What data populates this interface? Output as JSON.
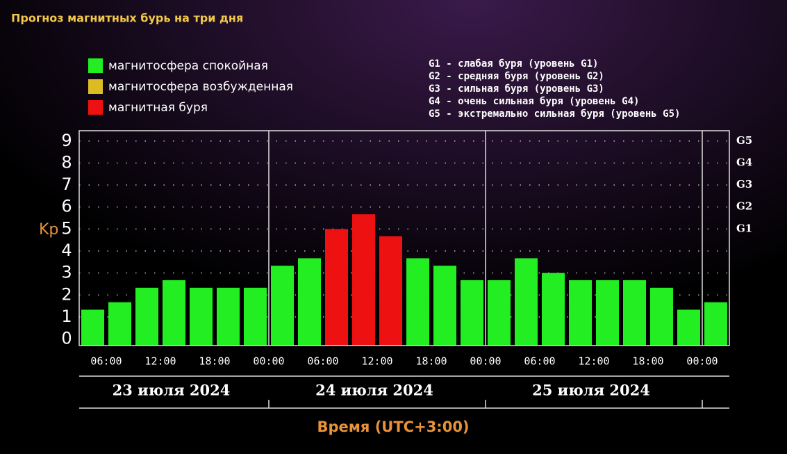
{
  "chart_data": {
    "type": "bar",
    "title": "Прогноз магнитных бурь на три дня",
    "y_label": "Kp",
    "x_label": "Время (UTC+3:00)",
    "legend": [
      {
        "name": "магнитосфера спокойная",
        "color": "#22ee22"
      },
      {
        "name": "магнитосфера возбужденная",
        "color": "#ddbb22"
      },
      {
        "name": "магнитная буря",
        "color": "#ee1111"
      }
    ],
    "notes": [
      "G1 - слабая буря (уровень G1)",
      "G2 - средняя буря (уровень G2)",
      "G3 - сильная буря (уровень G3)",
      "G4 - очень сильная буря (уровень G4)",
      "G5 - экстремально сильная буря (уровень G5)"
    ],
    "x": [
      4.5,
      7.5,
      10.5,
      13.5,
      16.5,
      19.5,
      22.5,
      25.5,
      28.5,
      31.5,
      34.5,
      37.5,
      40.5,
      43.5,
      46.5,
      49.5,
      52.5,
      55.5,
      58.5,
      61.5,
      64.5,
      67.5,
      70.5,
      73.5
    ],
    "values": [
      1.33,
      1.67,
      2.33,
      2.67,
      2.33,
      2.33,
      2.33,
      3.33,
      3.67,
      5,
      5.67,
      4.67,
      3.67,
      3.33,
      2.67,
      2.67,
      3.67,
      3,
      2.67,
      2.67,
      2.67,
      2.33,
      1.33,
      1.67
    ],
    "colors": [
      "#22ee22",
      "#22ee22",
      "#22ee22",
      "#22ee22",
      "#22ee22",
      "#22ee22",
      "#22ee22",
      "#22ee22",
      "#22ee22",
      "#ee1111",
      "#ee1111",
      "#ee1111",
      "#22ee22",
      "#22ee22",
      "#22ee22",
      "#22ee22",
      "#22ee22",
      "#22ee22",
      "#22ee22",
      "#22ee22",
      "#22ee22",
      "#22ee22",
      "#22ee22",
      "#22ee22"
    ],
    "bar_width": 3,
    "xlim": [
      3,
      75
    ],
    "xticks": [
      {
        "value": 6,
        "label": "06:00"
      },
      {
        "value": 12,
        "label": "12:00"
      },
      {
        "value": 18,
        "label": "18:00"
      },
      {
        "value": 24,
        "label": "00:00"
      },
      {
        "value": 30,
        "label": "06:00"
      },
      {
        "value": 36,
        "label": "12:00"
      },
      {
        "value": 42,
        "label": "18:00"
      },
      {
        "value": 48,
        "label": "00:00"
      },
      {
        "value": 54,
        "label": "06:00"
      },
      {
        "value": 60,
        "label": "12:00"
      },
      {
        "value": 66,
        "label": "18:00"
      },
      {
        "value": 72,
        "label": "00:00"
      }
    ],
    "days": [
      {
        "label": "23 июля 2024",
        "from": 3,
        "to": 24
      },
      {
        "label": "24 июля 2024",
        "from": 24,
        "to": 48
      },
      {
        "label": "25 июля 2024",
        "from": 48,
        "to": 72
      }
    ],
    "ylim": [
      -0.3,
      9.47
    ],
    "yticks": [
      0,
      1,
      2,
      3,
      4,
      5,
      6,
      7,
      8,
      9
    ],
    "y2lim": [
      -0.3,
      9.47
    ],
    "y2ticks": [
      {
        "value": 5,
        "label": "G1"
      },
      {
        "value": 6,
        "label": "G2"
      },
      {
        "value": 7,
        "label": "G3"
      },
      {
        "value": 8,
        "label": "G4"
      },
      {
        "value": 9,
        "label": "G5"
      }
    ],
    "grid": true
  }
}
